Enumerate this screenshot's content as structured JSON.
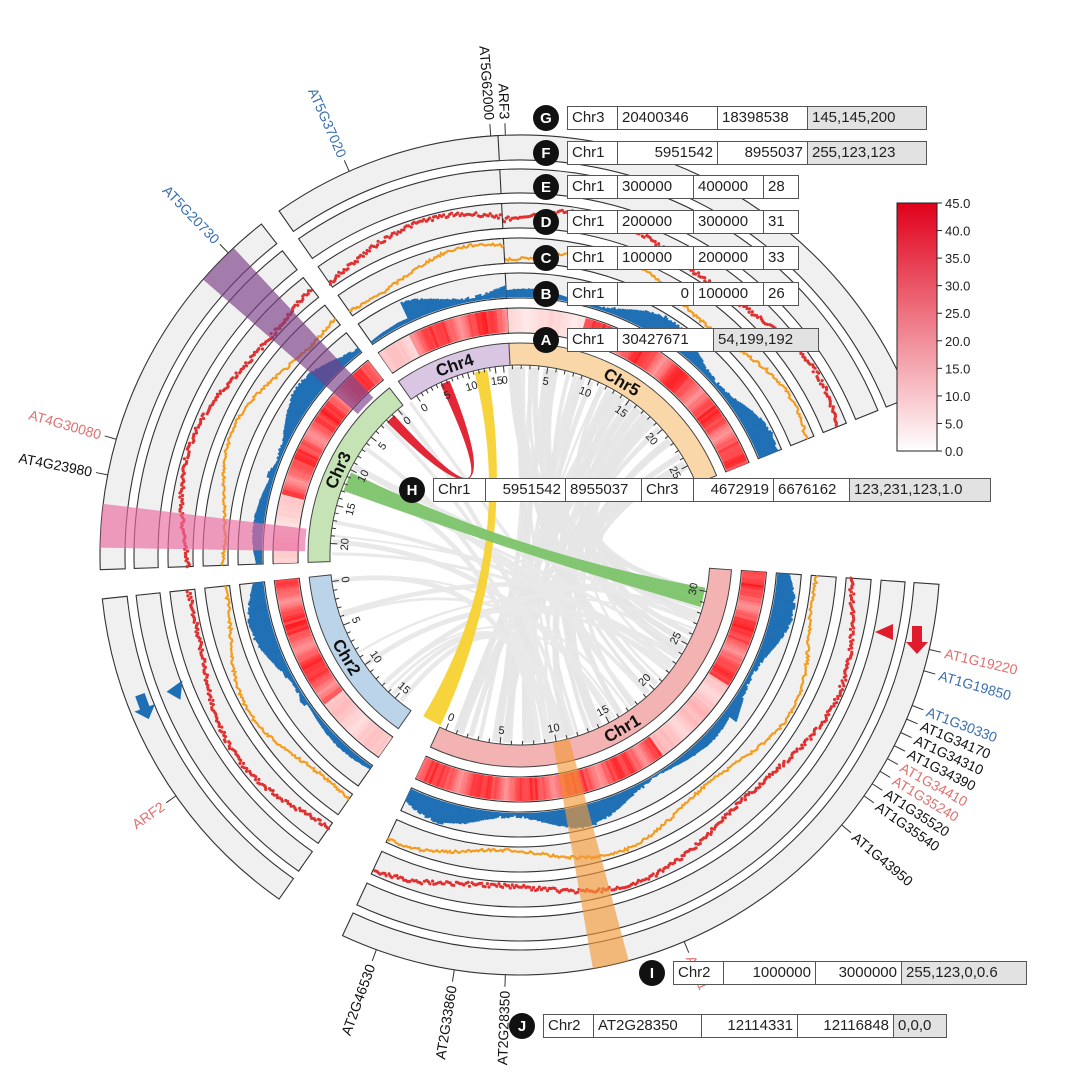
{
  "chromosomes": [
    {
      "name": "Chr1",
      "ticks": [
        "0",
        "5",
        "10",
        "15",
        "20",
        "25",
        "30"
      ],
      "color": "#f4b3b3"
    },
    {
      "name": "Chr2",
      "ticks": [
        "0",
        "5",
        "10",
        "15"
      ],
      "color": "#bcd4ea"
    },
    {
      "name": "Chr3",
      "ticks": [
        "0",
        "5",
        "10",
        "15",
        "20"
      ],
      "color": "#c5e3b5"
    },
    {
      "name": "Chr4",
      "ticks": [
        "0",
        "5",
        "10",
        "15"
      ],
      "color": "#d9c6e3"
    },
    {
      "name": "Chr5",
      "ticks": [
        "0",
        "5",
        "10",
        "15",
        "20",
        "25"
      ],
      "color": "#f9d7a8"
    }
  ],
  "gene_labels": {
    "chr5": [
      "ARF3",
      "AT5G62000",
      "AT5G37020",
      "AT5G20730"
    ],
    "chr4": [
      "AT4G30080",
      "AT4G23980"
    ],
    "chr3": [
      "ARF2"
    ],
    "chr2": [
      "AT2G46530",
      "AT2G33860",
      "AT2G28350"
    ],
    "chr1": [
      "AT1G19220",
      "AT1G19850",
      "AT1G30330",
      "AT1G34170",
      "AT1G34310",
      "AT1G34390",
      "AT1G34410",
      "AT1G35240",
      "AT1G35520",
      "AT1G35540",
      "AT1G43950",
      "ARF1"
    ]
  },
  "label_colors": {
    "red": "#e07070",
    "blue": "#3a6fb0",
    "black": "#111111"
  },
  "track_colors": {
    "scatter_red": "#e03030",
    "line_orange": "#f39c1e",
    "bars_blue": "#1f6fb5",
    "heat_red": "#e02424",
    "link_yellow": "#f7d230",
    "link_green": "#7cc46a",
    "link_red": "#e01b2b",
    "highlight_purple": "#7a3e86",
    "highlight_pink": "#ea6aa0",
    "highlight_orange": "#f19a3a"
  },
  "tables": {
    "A": {
      "badge": "A",
      "cells": [
        "Chr1",
        "30427671",
        "54,199,192"
      ]
    },
    "B": {
      "badge": "B",
      "cells": [
        "Chr1",
        "0",
        "100000",
        "26"
      ]
    },
    "C": {
      "badge": "C",
      "cells": [
        "Chr1",
        "100000",
        "200000",
        "33"
      ]
    },
    "D": {
      "badge": "D",
      "cells": [
        "Chr1",
        "200000",
        "300000",
        "31"
      ]
    },
    "E": {
      "badge": "E",
      "cells": [
        "Chr1",
        "300000",
        "400000",
        "28"
      ]
    },
    "F": {
      "badge": "F",
      "cells": [
        "Chr1",
        "5951542",
        "8955037",
        "255,123,123"
      ]
    },
    "G": {
      "badge": "G",
      "cells": [
        "Chr3",
        "20400346",
        "18398538",
        "145,145,200"
      ]
    },
    "H": {
      "badge": "H",
      "cells": [
        "Chr1",
        "5951542",
        "8955037",
        "Chr3",
        "4672919",
        "6676162",
        "123,231,123,1.0"
      ]
    },
    "I": {
      "badge": "I",
      "cells": [
        "Chr2",
        "1000000",
        "3000000",
        "255,123,0,0.6"
      ]
    },
    "J": {
      "badge": "J",
      "cells": [
        "Chr2",
        "AT2G28350",
        "12114331",
        "12116848",
        "0,0,0"
      ]
    }
  },
  "colorbar": {
    "ticks": [
      "45.0",
      "40.0",
      "35.0",
      "30.0",
      "25.0",
      "20.0",
      "15.0",
      "10.0",
      "5.0",
      "0.0"
    ],
    "max": 45,
    "min": 0
  }
}
